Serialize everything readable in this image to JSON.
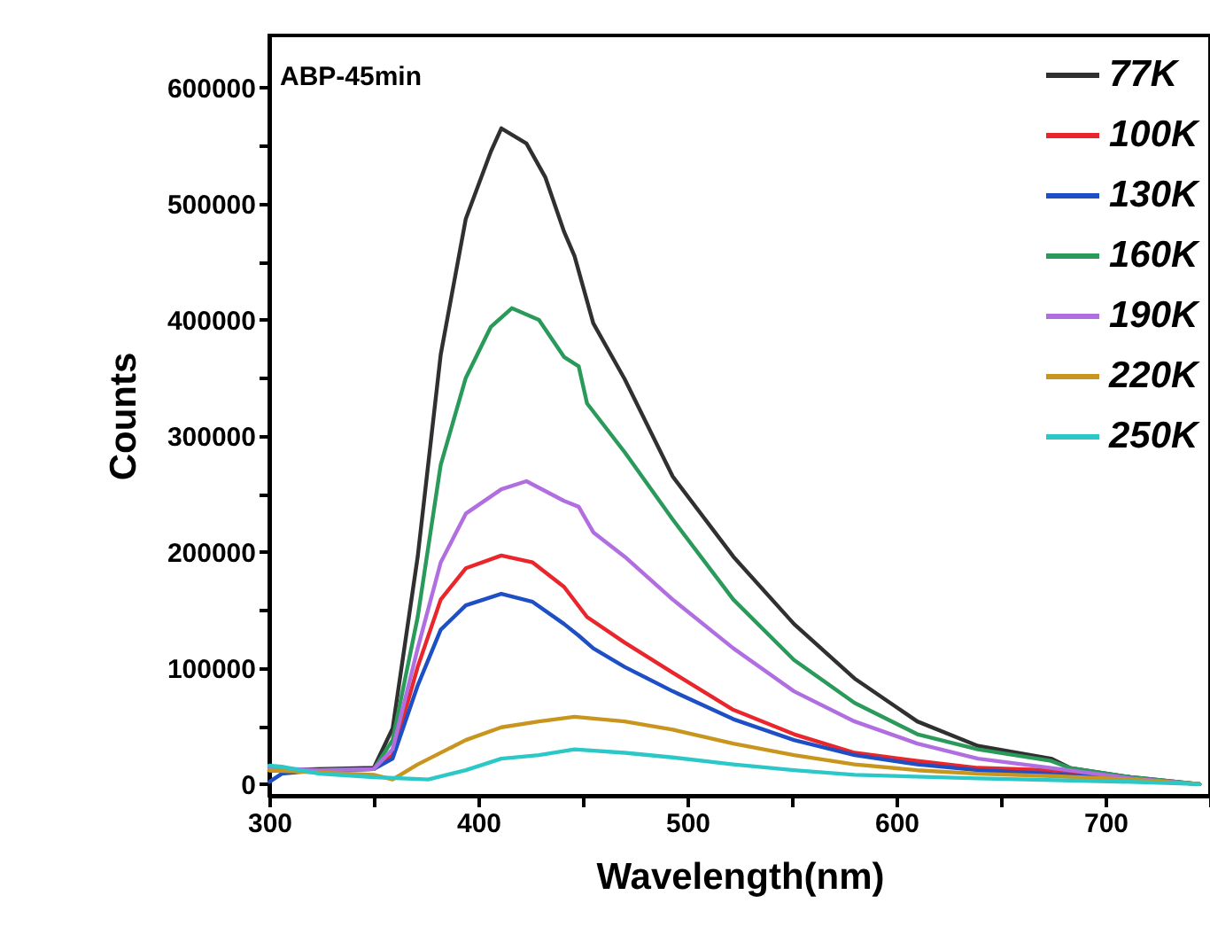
{
  "chart_data": {
    "type": "line",
    "xlabel": "Wavelength(nm)",
    "ylabel": "Counts",
    "annotations": [
      "ABP-45min"
    ],
    "xlim": [
      300,
      750
    ],
    "xticks": [
      300,
      {
        "value": 350,
        "label": null
      },
      400,
      {
        "value": 450,
        "label": null
      },
      500,
      {
        "value": 550,
        "label": null
      },
      600,
      {
        "value": 650,
        "label": null
      },
      700,
      {
        "value": 750,
        "label": null
      }
    ],
    "ylim": [
      -10000,
      645000
    ],
    "yticks": [
      0,
      {
        "value": 50000,
        "label": null
      },
      100000,
      {
        "value": 150000,
        "label": null
      },
      200000,
      {
        "value": 250000,
        "label": null
      },
      300000,
      {
        "value": 350000,
        "label": null
      },
      400000,
      {
        "value": 450000,
        "label": null
      },
      500000,
      {
        "value": 550000,
        "label": null
      },
      600000
    ],
    "grid": false,
    "legend": "top right",
    "line_style": "solid",
    "series": [
      {
        "name": "77K",
        "color": "#303030",
        "x": [
          300,
          350,
          359,
          371,
          382,
          394,
          406,
          411,
          423,
          432,
          441,
          446,
          455,
          470,
          493,
          522,
          551,
          580,
          610,
          639,
          674,
          683,
          712,
          745
        ],
        "values": [
          12000,
          14000,
          48000,
          196000,
          370000,
          487000,
          545000,
          565000,
          552000,
          523000,
          476000,
          455000,
          397000,
          349000,
          265000,
          196000,
          138000,
          91000,
          54000,
          33000,
          22000,
          14000,
          6000,
          0
        ]
      },
      {
        "name": "100K",
        "color": "#e8262b",
        "x": [
          300,
          324,
          350,
          359,
          371,
          382,
          394,
          411,
          426,
          441,
          452,
          470,
          493,
          522,
          551,
          580,
          610,
          639,
          674,
          712,
          745
        ],
        "values": [
          12000,
          12000,
          13000,
          25000,
          101000,
          159000,
          186000,
          197000,
          191000,
          170000,
          144000,
          122000,
          96000,
          64000,
          43000,
          27000,
          20000,
          14000,
          12000,
          5000,
          0
        ]
      },
      {
        "name": "130K",
        "color": "#1f4fc4",
        "x": [
          300,
          306,
          324,
          350,
          359,
          371,
          382,
          394,
          411,
          426,
          441,
          448,
          455,
          470,
          493,
          522,
          551,
          580,
          610,
          639,
          674,
          712,
          745
        ],
        "values": [
          2000,
          9000,
          12000,
          13000,
          22000,
          85000,
          133000,
          154000,
          164000,
          157000,
          138000,
          128000,
          117000,
          101000,
          80000,
          56000,
          38000,
          25000,
          17000,
          12000,
          9000,
          4000,
          0
        ]
      },
      {
        "name": "160K",
        "color": "#2a9a5a",
        "x": [
          300,
          324,
          350,
          359,
          371,
          382,
          394,
          406,
          416,
          429,
          441,
          448,
          452,
          470,
          493,
          522,
          551,
          580,
          610,
          639,
          674,
          683,
          712,
          745
        ],
        "values": [
          12000,
          12000,
          13000,
          38000,
          144000,
          275000,
          350000,
          394000,
          410000,
          400000,
          368000,
          360000,
          328000,
          286000,
          228000,
          159000,
          107000,
          70000,
          43000,
          30000,
          20000,
          14000,
          6000,
          0
        ]
      },
      {
        "name": "190K",
        "color": "#b06ee0",
        "x": [
          300,
          324,
          350,
          359,
          371,
          382,
          394,
          411,
          423,
          441,
          448,
          455,
          470,
          493,
          522,
          551,
          580,
          610,
          639,
          674,
          712,
          745
        ],
        "values": [
          14000,
          12000,
          13000,
          30000,
          117000,
          191000,
          233000,
          254000,
          261000,
          244000,
          239000,
          217000,
          196000,
          159000,
          117000,
          80000,
          54000,
          35000,
          22000,
          14000,
          5000,
          0
        ]
      },
      {
        "name": "220K",
        "color": "#c8961e",
        "x": [
          300,
          324,
          350,
          359,
          371,
          394,
          411,
          429,
          446,
          470,
          493,
          522,
          551,
          580,
          610,
          639,
          674,
          712,
          745
        ],
        "values": [
          12000,
          10000,
          8000,
          4000,
          17000,
          38000,
          49000,
          54000,
          58000,
          54000,
          47000,
          35000,
          25000,
          17000,
          12000,
          9000,
          7000,
          4000,
          0
        ]
      },
      {
        "name": "250K",
        "color": "#2cc8c8",
        "x": [
          300,
          306,
          324,
          350,
          376,
          394,
          411,
          429,
          446,
          470,
          493,
          522,
          551,
          580,
          639,
          712,
          745
        ],
        "values": [
          16000,
          15000,
          9000,
          6000,
          4000,
          12000,
          22000,
          25000,
          30000,
          27000,
          23000,
          17000,
          12000,
          8000,
          5000,
          2000,
          0
        ]
      }
    ]
  }
}
